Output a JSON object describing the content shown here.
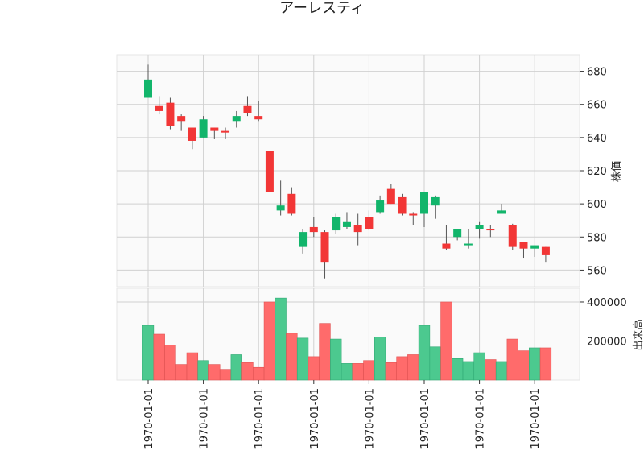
{
  "chart_data": {
    "type": "candlestick",
    "title": "アーレスティ",
    "price_axis": {
      "label": "株価",
      "range": [
        550,
        690
      ],
      "ticks": [
        "560",
        "580",
        "600",
        "620",
        "640",
        "660",
        "680"
      ]
    },
    "volume_axis": {
      "label": "出来高",
      "range": [
        0,
        470000
      ],
      "ticks": [
        "200000",
        "400000"
      ]
    },
    "x_tick_labels": [
      "1970-01-01",
      "1970-01-01",
      "1970-01-01",
      "1970-01-01",
      "1970-01-01",
      "1970-01-01",
      "1970-01-01",
      "1970-01-01"
    ],
    "x_tick_bars": [
      0,
      5,
      10,
      15,
      20,
      25,
      30,
      35
    ],
    "grid": true,
    "up_color": "#12b56b",
    "down_color": "#f23636",
    "volume_up_color": "#4cc98f",
    "volume_down_color": "#ff6b6b",
    "bars": [
      {
        "o": 664,
        "h": 684,
        "l": 664,
        "c": 675,
        "v": 280000
      },
      {
        "o": 659,
        "h": 665,
        "l": 654,
        "c": 656,
        "v": 235000
      },
      {
        "o": 661,
        "h": 664,
        "l": 645,
        "c": 647,
        "v": 180000
      },
      {
        "o": 653,
        "h": 654,
        "l": 644,
        "c": 650,
        "v": 80000
      },
      {
        "o": 646,
        "h": 646,
        "l": 633,
        "c": 638,
        "v": 140000
      },
      {
        "o": 640,
        "h": 653,
        "l": 640,
        "c": 651,
        "v": 100000
      },
      {
        "o": 646,
        "h": 646,
        "l": 639,
        "c": 644,
        "v": 80000
      },
      {
        "o": 644,
        "h": 646,
        "l": 639,
        "c": 643,
        "v": 55000
      },
      {
        "o": 650,
        "h": 656,
        "l": 646,
        "c": 653,
        "v": 130000
      },
      {
        "o": 659,
        "h": 665,
        "l": 653,
        "c": 655,
        "v": 90000
      },
      {
        "o": 653,
        "h": 662,
        "l": 650,
        "c": 651,
        "v": 65000
      },
      {
        "o": 632,
        "h": 632,
        "l": 607,
        "c": 607,
        "v": 400000
      },
      {
        "o": 596,
        "h": 614,
        "l": 593,
        "c": 599,
        "v": 420000
      },
      {
        "o": 606,
        "h": 610,
        "l": 593,
        "c": 594,
        "v": 240000
      },
      {
        "o": 574,
        "h": 585,
        "l": 570,
        "c": 583,
        "v": 215000
      },
      {
        "o": 586,
        "h": 592,
        "l": 580,
        "c": 583,
        "v": 120000
      },
      {
        "o": 583,
        "h": 584,
        "l": 555,
        "c": 565,
        "v": 290000
      },
      {
        "o": 584,
        "h": 594,
        "l": 582,
        "c": 592,
        "v": 210000
      },
      {
        "o": 586,
        "h": 595,
        "l": 585,
        "c": 589,
        "v": 85000
      },
      {
        "o": 587,
        "h": 594,
        "l": 575,
        "c": 583,
        "v": 85000
      },
      {
        "o": 592,
        "h": 596,
        "l": 584,
        "c": 585,
        "v": 100000
      },
      {
        "o": 595,
        "h": 605,
        "l": 594,
        "c": 602,
        "v": 220000
      },
      {
        "o": 609,
        "h": 612,
        "l": 600,
        "c": 600,
        "v": 90000
      },
      {
        "o": 604,
        "h": 606,
        "l": 593,
        "c": 594,
        "v": 120000
      },
      {
        "o": 594,
        "h": 595,
        "l": 587,
        "c": 593,
        "v": 130000
      },
      {
        "o": 594,
        "h": 607,
        "l": 586,
        "c": 607,
        "v": 280000
      },
      {
        "o": 599,
        "h": 605,
        "l": 591,
        "c": 604,
        "v": 170000
      },
      {
        "o": 576,
        "h": 587,
        "l": 572,
        "c": 573,
        "v": 400000
      },
      {
        "o": 580,
        "h": 585,
        "l": 578,
        "c": 585,
        "v": 110000
      },
      {
        "o": 575,
        "h": 585,
        "l": 573,
        "c": 576,
        "v": 95000
      },
      {
        "o": 585,
        "h": 589,
        "l": 579,
        "c": 587,
        "v": 140000
      },
      {
        "o": 585,
        "h": 587,
        "l": 580,
        "c": 584,
        "v": 105000
      },
      {
        "o": 594,
        "h": 600,
        "l": 594,
        "c": 596,
        "v": 95000
      },
      {
        "o": 587,
        "h": 588,
        "l": 572,
        "c": 574,
        "v": 210000
      },
      {
        "o": 577,
        "h": 577,
        "l": 567,
        "c": 573,
        "v": 150000
      },
      {
        "o": 573,
        "h": 575,
        "l": 568,
        "c": 575,
        "v": 165000
      },
      {
        "o": 574,
        "h": 574,
        "l": 565,
        "c": 569,
        "v": 165000
      }
    ]
  }
}
